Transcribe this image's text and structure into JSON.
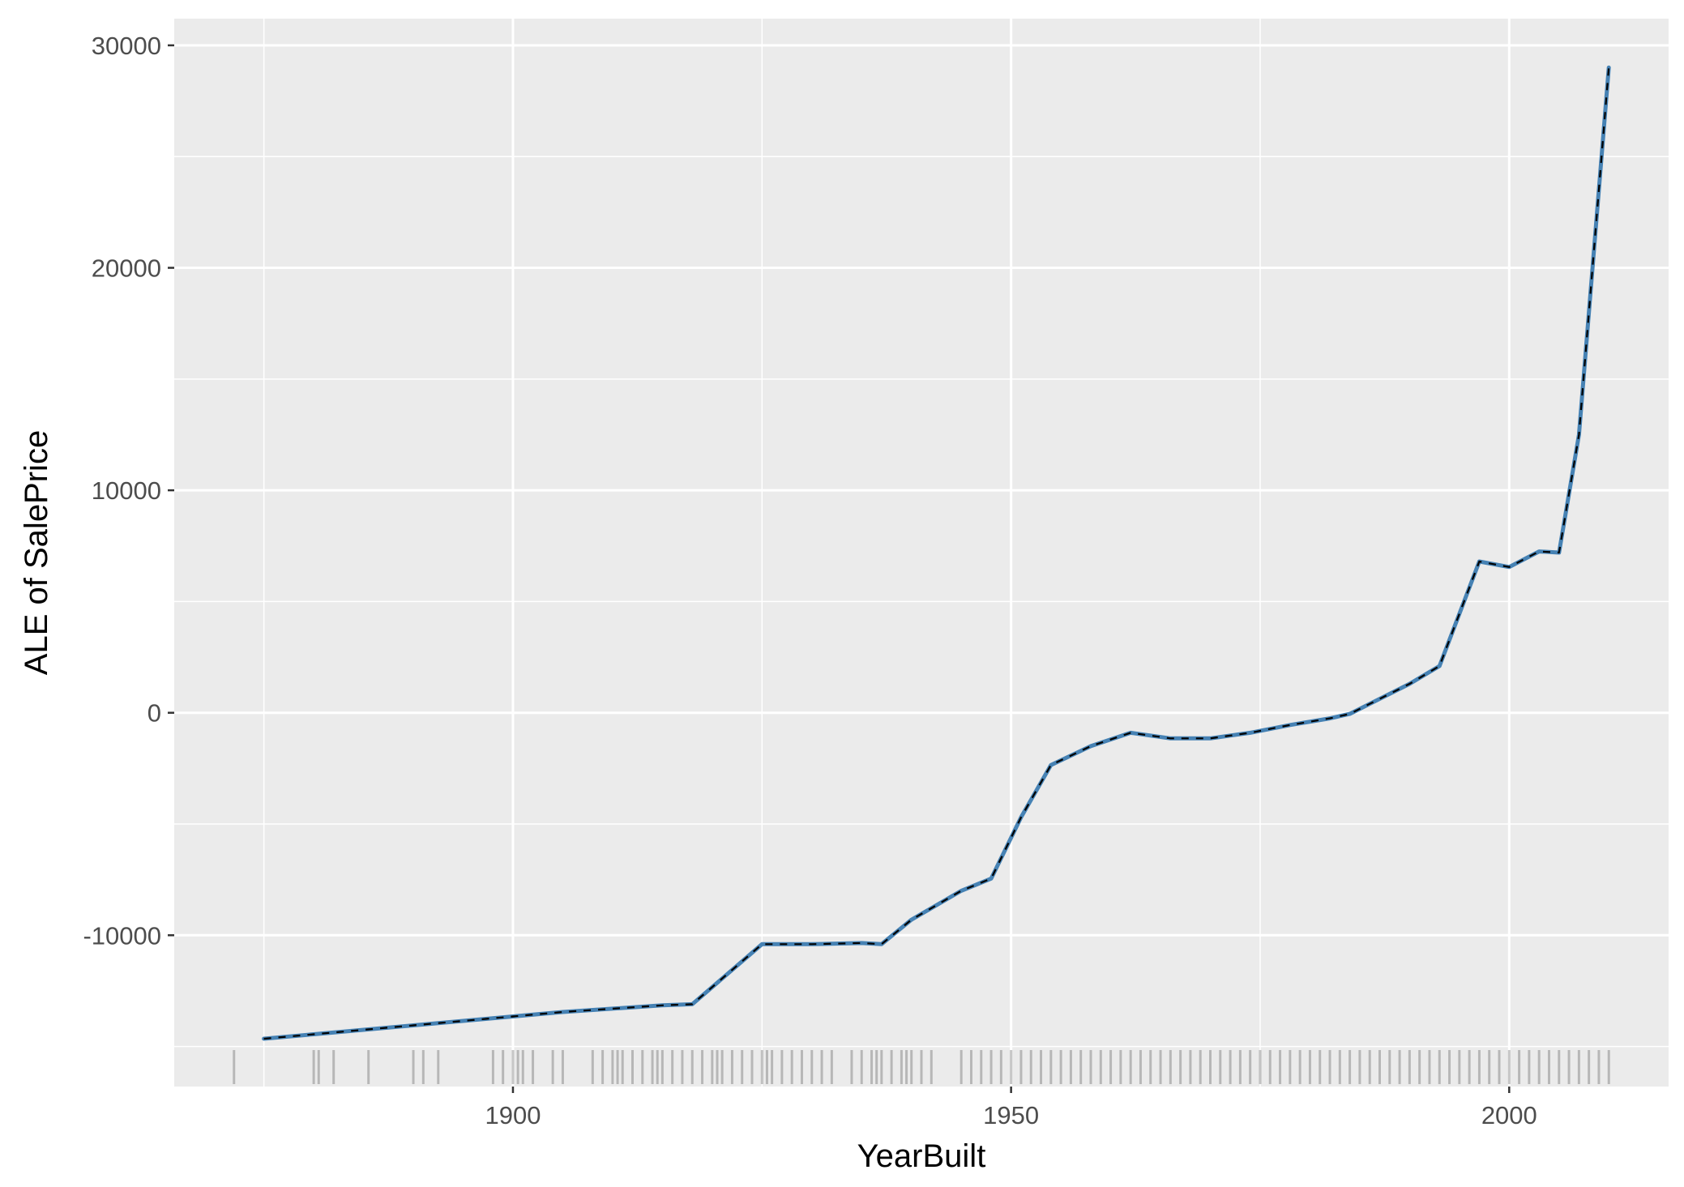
{
  "chart_data": {
    "type": "line",
    "xlabel": "YearBuilt",
    "ylabel": "ALE of SalePrice",
    "xlim": [
      1866,
      2016
    ],
    "ylim": [
      -16800,
      31200
    ],
    "x_ticks": [
      1900,
      1950,
      2000
    ],
    "x_tick_labels": [
      "1900",
      "1950",
      "2000"
    ],
    "y_ticks": [
      -10000,
      0,
      10000,
      20000,
      30000
    ],
    "y_tick_labels": [
      "-10000",
      "0",
      "10000",
      "20000",
      "30000"
    ],
    "grid": true,
    "colors": {
      "panel_background": "#ebebeb",
      "grid": "#ffffff",
      "line": "#4682b4",
      "overlay_dashed": "#000000",
      "rug": "#000000"
    },
    "series": [
      {
        "style": "solid",
        "x": [
          1875,
          1880,
          1885,
          1890,
          1895,
          1900,
          1905,
          1910,
          1915,
          1918,
          1925,
          1930,
          1935,
          1937,
          1940,
          1945,
          1948,
          1951,
          1954,
          1958,
          1962,
          1966,
          1970,
          1974,
          1978,
          1982,
          1984,
          1986,
          1990,
          1993,
          1997,
          2000,
          2003,
          2005,
          2007,
          2010
        ],
        "y": [
          -14650,
          -14450,
          -14250,
          -14050,
          -13850,
          -13650,
          -13450,
          -13300,
          -13150,
          -13100,
          -10400,
          -10400,
          -10350,
          -10400,
          -9300,
          -8000,
          -7450,
          -4700,
          -2350,
          -1500,
          -900,
          -1150,
          -1150,
          -900,
          -550,
          -250,
          -50,
          400,
          1300,
          2100,
          6800,
          6550,
          7250,
          7200,
          12500,
          29000
        ]
      }
    ],
    "rug_x": [
      1872,
      1880,
      1880.5,
      1882,
      1885.5,
      1890,
      1891,
      1892.5,
      1898,
      1899,
      1900,
      1900.5,
      1901,
      1902,
      1904,
      1905,
      1908,
      1909,
      1910,
      1910.5,
      1911,
      1912,
      1913,
      1914,
      1914.5,
      1915,
      1916,
      1917,
      1918,
      1919,
      1920,
      1920.5,
      1921,
      1922,
      1923,
      1924,
      1925,
      1925.5,
      1926,
      1927,
      1928,
      1929,
      1930,
      1931,
      1932,
      1934,
      1935,
      1936,
      1936.5,
      1937,
      1938,
      1939,
      1939.5,
      1940,
      1941,
      1942,
      1945,
      1946,
      1947,
      1948,
      1949,
      1950,
      1951,
      1952,
      1953,
      1954,
      1955,
      1956,
      1957,
      1958,
      1959,
      1960,
      1961,
      1962,
      1963,
      1964,
      1965,
      1966,
      1967,
      1968,
      1969,
      1970,
      1971,
      1972,
      1973,
      1974,
      1975,
      1976,
      1977,
      1978,
      1979,
      1980,
      1981,
      1982,
      1983,
      1984,
      1985,
      1986,
      1987,
      1988,
      1989,
      1990,
      1991,
      1992,
      1993,
      1994,
      1995,
      1996,
      1997,
      1998,
      1999,
      2000,
      2001,
      2002,
      2003,
      2004,
      2005,
      2006,
      2007,
      2008,
      2009,
      2010
    ]
  }
}
